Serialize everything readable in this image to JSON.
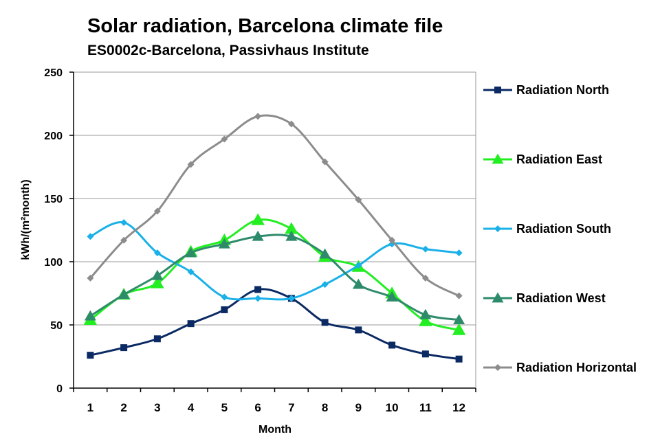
{
  "chart_data": {
    "type": "line",
    "title": "Solar radiation, Barcelona climate file",
    "subtitle": "ES0002c-Barcelona, Passivhaus Institute",
    "xlabel": "Month",
    "ylabel": "kWh/(m²month)",
    "x": [
      1,
      2,
      3,
      4,
      5,
      6,
      7,
      8,
      9,
      10,
      11,
      12
    ],
    "ylim": [
      0,
      250
    ],
    "yticks": [
      0,
      50,
      100,
      150,
      200,
      250
    ],
    "grid": "horizontal",
    "legend_position": "right",
    "series": [
      {
        "name": "Radiation North",
        "color": "#0b2a63",
        "marker": "square",
        "values": [
          26,
          32,
          39,
          51,
          62,
          78,
          71,
          52,
          46,
          34,
          27,
          23
        ]
      },
      {
        "name": "Radiation East",
        "color": "#22ee22",
        "marker": "triangle",
        "values": [
          54,
          74,
          83,
          108,
          117,
          133,
          126,
          104,
          96,
          75,
          53,
          46
        ]
      },
      {
        "name": "Radiation South",
        "color": "#1ab0e8",
        "marker": "diamond",
        "values": [
          120,
          131,
          107,
          92,
          72,
          71,
          71,
          82,
          97,
          114,
          110,
          107
        ]
      },
      {
        "name": "Radiation West",
        "color": "#2e8b6a",
        "marker": "triangle",
        "values": [
          57,
          74,
          89,
          107,
          114,
          120,
          120,
          106,
          82,
          72,
          58,
          54
        ]
      },
      {
        "name": "Radiation Horizontal",
        "color": "#8c8c8c",
        "marker": "diamond",
        "values": [
          87,
          117,
          140,
          177,
          197,
          215,
          209,
          179,
          149,
          117,
          87,
          73
        ]
      }
    ]
  }
}
